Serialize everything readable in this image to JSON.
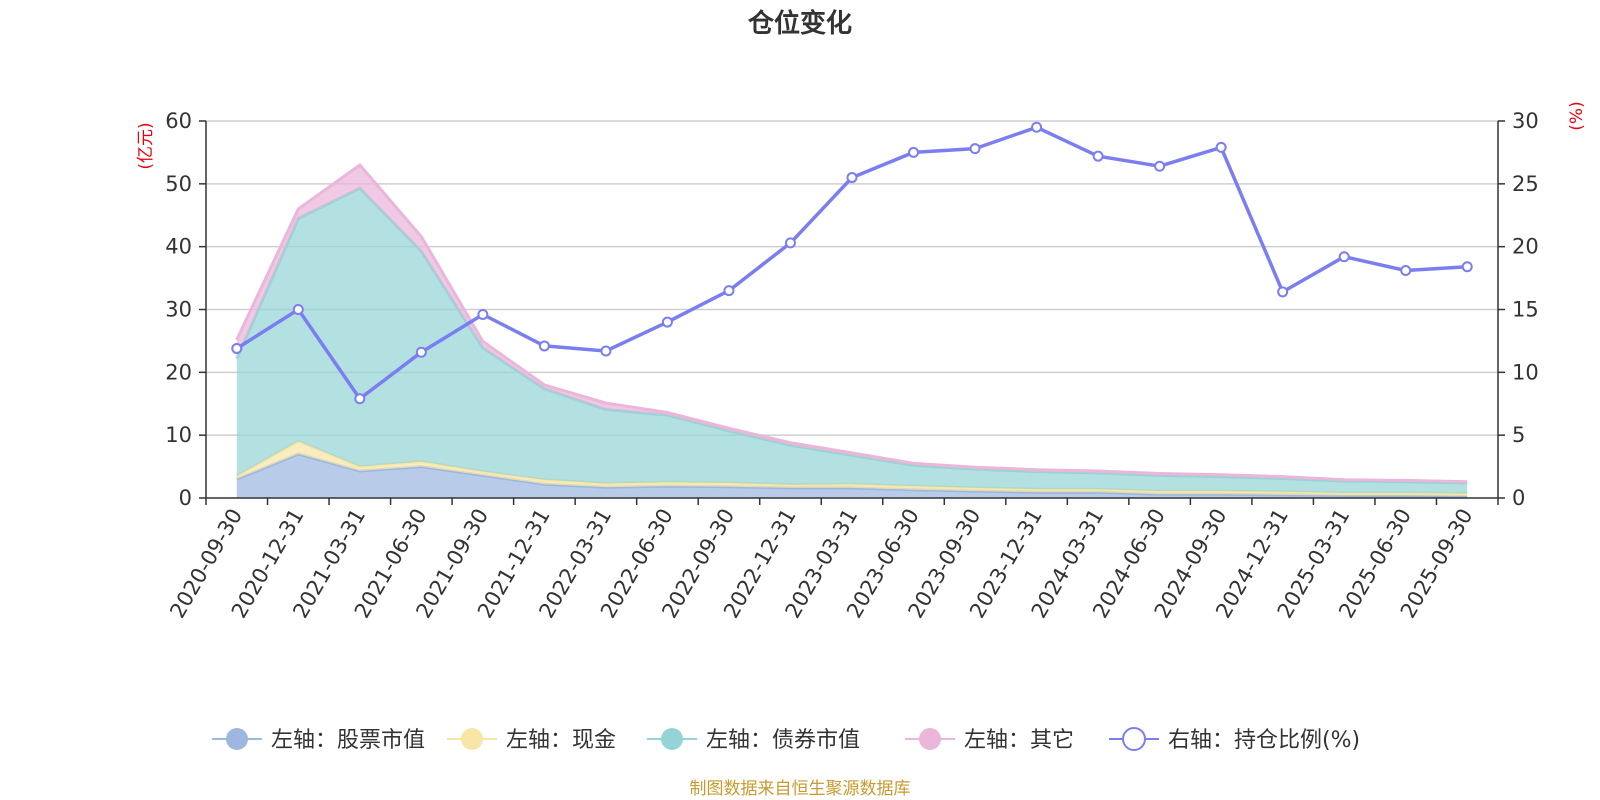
{
  "chart_data": {
    "type": "area",
    "title": "仓位变化",
    "left_unit": "(亿元)",
    "right_unit": "(%)",
    "categories": [
      "2020-09-30",
      "2020-12-31",
      "2021-03-31",
      "2021-06-30",
      "2021-09-30",
      "2021-12-31",
      "2022-03-31",
      "2022-06-30",
      "2022-09-30",
      "2022-12-31",
      "2023-03-31",
      "2023-06-30",
      "2023-09-30",
      "2023-12-31",
      "2024-03-31",
      "2024-06-30",
      "2024-09-30",
      "2024-12-31",
      "2025-03-31",
      "2025-06-30",
      "2025-09-30"
    ],
    "left_axis": {
      "min": 0,
      "max": 60,
      "ticks": [
        0,
        10,
        20,
        30,
        40,
        50,
        60
      ]
    },
    "right_axis": {
      "min": 0,
      "max": 30,
      "ticks": [
        0,
        5,
        10,
        15,
        20,
        25,
        30
      ]
    },
    "stacked_series": [
      {
        "name": "左轴：股票市值",
        "color": "#9db7e0",
        "values": [
          3.0,
          7.0,
          4.3,
          5.0,
          3.6,
          2.2,
          1.7,
          1.9,
          1.8,
          1.6,
          1.6,
          1.3,
          1.1,
          0.9,
          0.9,
          0.6,
          0.6,
          0.5,
          0.4,
          0.4,
          0.3
        ]
      },
      {
        "name": "左轴：现金",
        "color": "#f7e6a6",
        "values": [
          0.5,
          2.0,
          0.7,
          0.8,
          0.6,
          0.7,
          0.6,
          0.6,
          0.6,
          0.5,
          0.6,
          0.6,
          0.5,
          0.5,
          0.5,
          0.5,
          0.5,
          0.5,
          0.4,
          0.4,
          0.4
        ]
      },
      {
        "name": "左轴：债券市值",
        "color": "#95d4d6",
        "values": [
          18.7,
          35.5,
          44.3,
          33.5,
          19.7,
          14.5,
          11.8,
          10.7,
          8.3,
          6.3,
          4.6,
          3.3,
          3.0,
          2.8,
          2.6,
          2.5,
          2.3,
          2.1,
          1.9,
          1.8,
          1.7
        ]
      },
      {
        "name": "左轴：其它",
        "color": "#eab6d9",
        "values": [
          3.0,
          1.5,
          3.7,
          2.3,
          1.0,
          0.6,
          1.0,
          0.4,
          0.4,
          0.4,
          0.4,
          0.3,
          0.3,
          0.3,
          0.3,
          0.3,
          0.3,
          0.3,
          0.2,
          0.2,
          0.2
        ]
      }
    ],
    "line_series": {
      "name": "右轴：持仓比例(%)",
      "color": "#7b7ef0",
      "values": [
        11.9,
        15.0,
        7.9,
        11.6,
        14.6,
        12.1,
        11.7,
        14.0,
        16.5,
        20.3,
        25.5,
        27.5,
        27.8,
        29.5,
        27.2,
        26.4,
        27.9,
        16.4,
        19.2,
        18.1,
        18.4
      ]
    },
    "legend": [
      "左轴：股票市值",
      "左轴：现金",
      "左轴：债券市值",
      "左轴：其它",
      "右轴：持仓比例(%)"
    ],
    "source": "制图数据来自恒生聚源数据库"
  }
}
